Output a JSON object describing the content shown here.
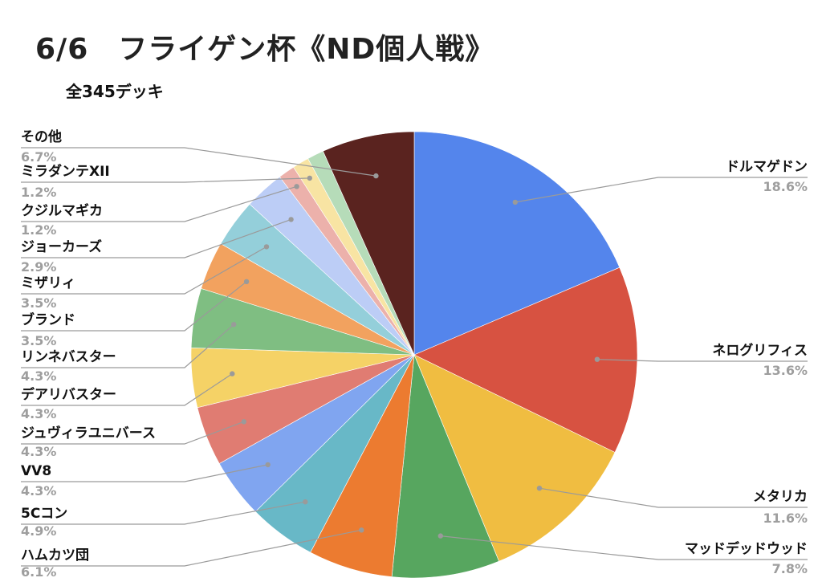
{
  "chart_data": {
    "type": "pie",
    "title": "6/6　フライゲン杯《ND個人戦》",
    "subtitle": "全345デッキ",
    "slices": [
      {
        "label": "ドルマゲドン",
        "value": 18.6,
        "display": "18.6%",
        "color": "#5485ec",
        "side": "right"
      },
      {
        "label": "ネログリフィス",
        "value": 13.6,
        "display": "13.6%",
        "color": "#d75241",
        "side": "right"
      },
      {
        "label": "メタリカ",
        "value": 11.6,
        "display": "11.6%",
        "color": "#f0bd41",
        "side": "right"
      },
      {
        "label": "マッドデッドウッド",
        "value": 7.8,
        "display": "7.8%",
        "color": "#57a65f",
        "side": "right"
      },
      {
        "label": "ハムカツ団",
        "value": 6.1,
        "display": "6.1%",
        "color": "#ec7b30",
        "side": "left"
      },
      {
        "label": "5Cコン",
        "value": 4.9,
        "display": "4.9%",
        "color": "#68b8c7",
        "side": "left"
      },
      {
        "label": "VV8",
        "value": 4.3,
        "display": "4.3%",
        "color": "#80a5f0",
        "side": "left"
      },
      {
        "label": "ジュヴィラユニバース",
        "value": 4.3,
        "display": "4.3%",
        "color": "#e07c72",
        "side": "left"
      },
      {
        "label": "デアリバスター",
        "value": 4.3,
        "display": "4.3%",
        "color": "#f5d266",
        "side": "left"
      },
      {
        "label": "リンネバスター",
        "value": 4.3,
        "display": "4.3%",
        "color": "#7fbe82",
        "side": "left"
      },
      {
        "label": "ブランド",
        "value": 3.5,
        "display": "3.5%",
        "color": "#f2a25f",
        "side": "left"
      },
      {
        "label": "ミザリィ",
        "value": 3.5,
        "display": "3.5%",
        "color": "#94cfda",
        "side": "left"
      },
      {
        "label": "ジョーカーズ",
        "value": 2.9,
        "display": "2.9%",
        "color": "#bccdf6",
        "side": "left"
      },
      {
        "label": "クジルマギカ",
        "value": 1.2,
        "display": "1.2%",
        "color": "#ecb1ab",
        "side": "left"
      },
      {
        "label": "ミラダンテXII",
        "value": 1.2,
        "display": "1.2%",
        "color": "#f8e4a3",
        "side": "left"
      },
      {
        "label": "その他",
        "value": 6.7,
        "display": "6.7%",
        "color": "#5a231f",
        "side": "left"
      }
    ],
    "legend": "none"
  },
  "extra_slice": {
    "value": 1.2,
    "color": "#b6dcb9"
  }
}
